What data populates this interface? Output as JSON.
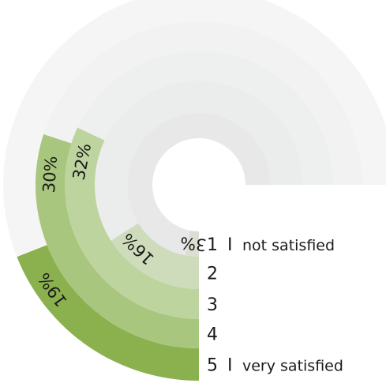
{
  "chart_data": {
    "type": "radial-bar",
    "title": "",
    "value_unit": "%",
    "full_scale": 100,
    "direction": "counterclockwise-from-bottom",
    "categories": [
      {
        "key": "1",
        "descriptor": "not satisfied",
        "value": 3,
        "label": "3%"
      },
      {
        "key": "2",
        "descriptor": "",
        "value": 16,
        "label": "16%"
      },
      {
        "key": "3",
        "descriptor": "",
        "value": 32,
        "label": "32%"
      },
      {
        "key": "4",
        "descriptor": "",
        "value": 30,
        "label": "30%"
      },
      {
        "key": "5",
        "descriptor": "very satisfied",
        "value": 19,
        "label": "19%"
      }
    ],
    "legend_separator": "I",
    "colors": {
      "track": [
        "#e8e8e8",
        "#ebecec",
        "#eef0ef",
        "#f1f2f1",
        "#f4f5f4"
      ],
      "bar": [
        "#ddddd4",
        "#cfdcbc",
        "#bdd49e",
        "#a8c67d",
        "#8bb04e"
      ],
      "text": "#1a1a1a"
    }
  }
}
